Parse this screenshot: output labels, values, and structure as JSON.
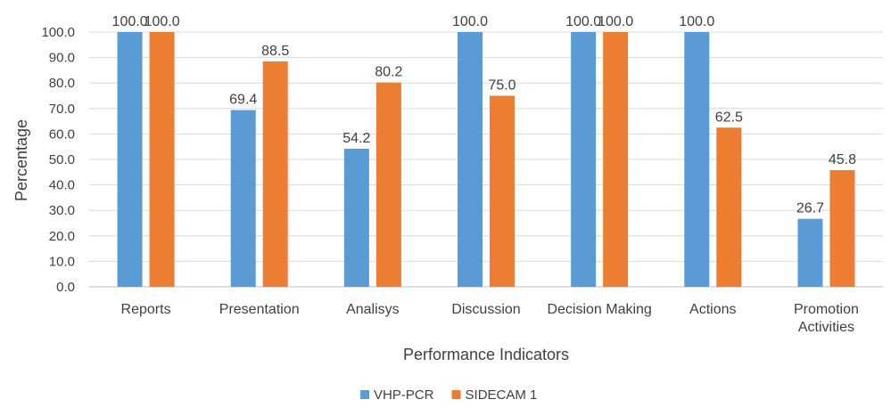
{
  "chart_data": {
    "type": "bar",
    "title": "",
    "xlabel": "Performance Indicators",
    "ylabel": "Percentage",
    "ylim": [
      0,
      100
    ],
    "ytick_step": 10,
    "grid": true,
    "legend_position": "bottom",
    "categories": [
      [
        "Reports"
      ],
      [
        "Presentation"
      ],
      [
        "Analisys"
      ],
      [
        "Discussion"
      ],
      [
        "Decision Making"
      ],
      [
        "Actions"
      ],
      [
        "Promotion",
        "Activities"
      ]
    ],
    "series": [
      {
        "name": "VHP-PCR",
        "color": "#5b9bd5",
        "values": [
          100.0,
          69.4,
          54.2,
          100.0,
          100.0,
          100.0,
          26.7
        ]
      },
      {
        "name": "SIDECAM 1",
        "color": "#ed7d31",
        "values": [
          100.0,
          88.5,
          80.2,
          75.0,
          100.0,
          62.5,
          45.8
        ]
      }
    ]
  }
}
